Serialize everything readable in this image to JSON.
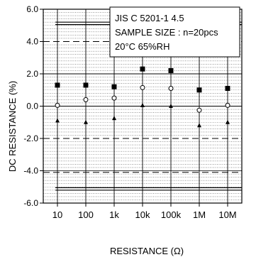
{
  "chart_data": {
    "type": "scatter",
    "xlabel": "RESISTANCE (Ω)",
    "ylabel": "DC  RESISTANCE (%)",
    "categories": [
      "10",
      "100",
      "1k",
      "10k",
      "100k",
      "1M",
      "10M"
    ],
    "ylim": [
      -6.0,
      6.0
    ],
    "y_ticks": [
      -6.0,
      -4.0,
      -2.0,
      0.0,
      2.0,
      4.0,
      6.0
    ],
    "y_tick_labels": [
      "-6.0",
      "-4.0",
      "-2.0",
      "0.0",
      "2.0",
      "4.0",
      "6.0"
    ],
    "minor_grid_step": 0.2,
    "series": [
      {
        "marker": "square-filled",
        "values": [
          1.3,
          1.3,
          1.2,
          2.3,
          2.2,
          1.0,
          1.1
        ]
      },
      {
        "marker": "circle-open",
        "values": [
          0.05,
          0.4,
          0.5,
          1.15,
          1.1,
          -0.25,
          0.05
        ]
      },
      {
        "marker": "triangle-filled",
        "values": [
          -0.9,
          -1.0,
          -0.75,
          0.05,
          0.0,
          -1.2,
          -1.0
        ]
      }
    ],
    "reference_lines": [
      {
        "style": "solid-double",
        "values": [
          5.05,
          5.2
        ]
      },
      {
        "style": "dashed",
        "values": [
          4.0
        ]
      },
      {
        "style": "dashed",
        "values": [
          -2.0
        ]
      },
      {
        "style": "dashed",
        "values": [
          -4.1
        ]
      },
      {
        "style": "solid-double",
        "values": [
          -5.05,
          -5.2
        ]
      }
    ],
    "annotation_lines": [
      "JIS C 5201-1 4.5",
      "SAMPLE SIZE : n=20pcs",
      "20°C   65%RH"
    ]
  }
}
